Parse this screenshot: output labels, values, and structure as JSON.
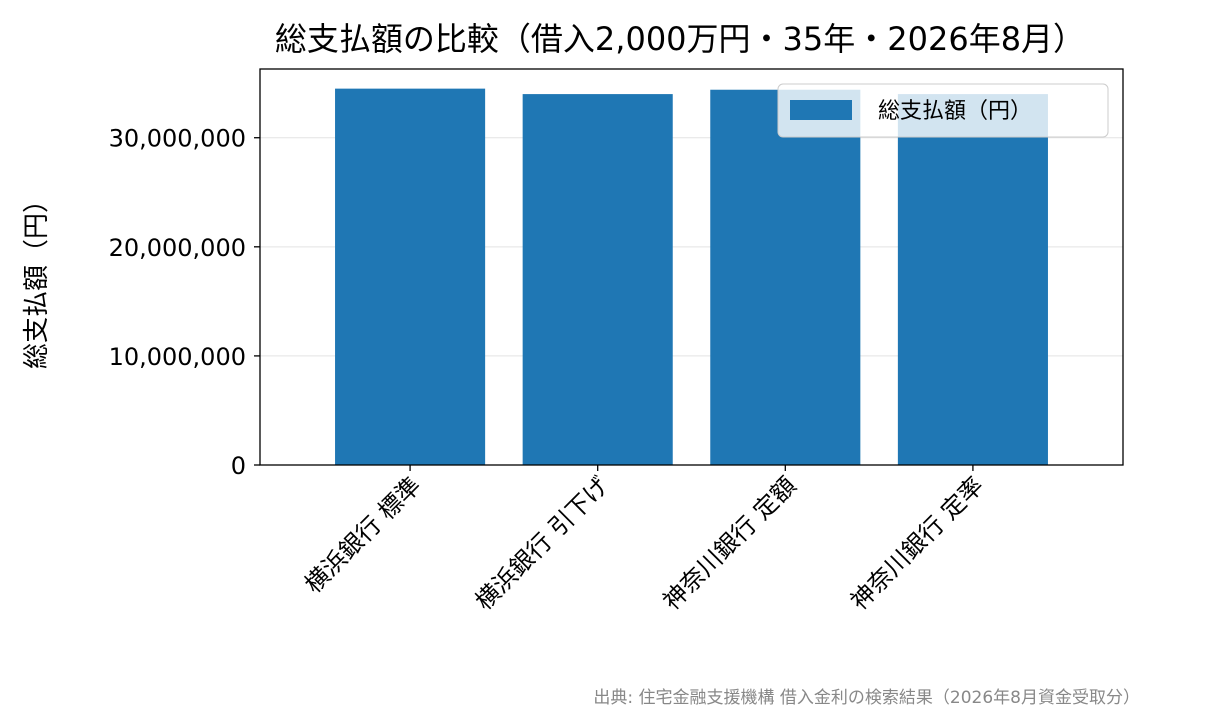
{
  "chart_data": {
    "type": "bar",
    "title": "総支払額の比較（借入2,000万円・35年・2026年8月）",
    "ylabel": "総支払額（円）",
    "xlabel": "",
    "categories": [
      "横浜銀行 標準",
      "横浜銀行 引下げ",
      "神奈川銀行 定額",
      "神奈川銀行 定率"
    ],
    "series": [
      {
        "name": "総支払額（円）",
        "values": [
          34500000,
          34000000,
          34400000,
          34000000
        ],
        "color": "#1f77b4"
      }
    ],
    "ylim": [
      0,
      36300000
    ],
    "yticks": [
      0,
      10000000,
      20000000,
      30000000
    ],
    "ytick_labels": [
      "0",
      "10,000,000",
      "20,000,000",
      "30,000,000"
    ],
    "grid": "horizontal",
    "legend_position": "top-right",
    "source": "出典: 住宅金融支援機構 借入金利の検索結果（2026年8月資金受取分）"
  }
}
